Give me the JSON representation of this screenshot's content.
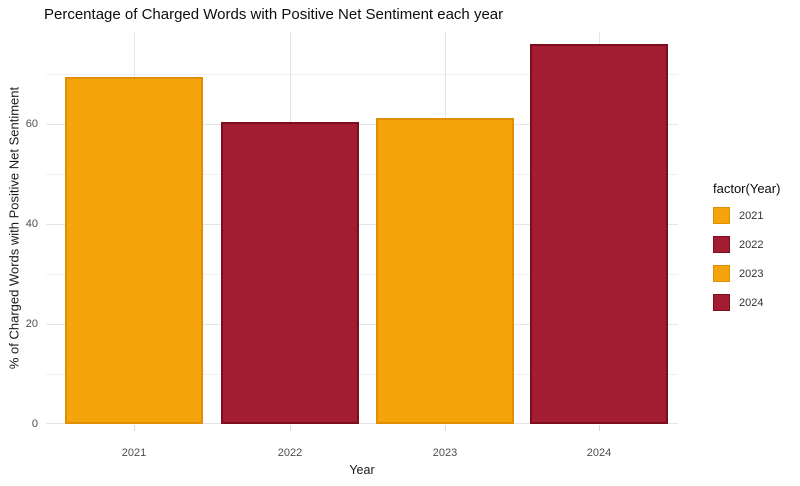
{
  "chart_data": {
    "type": "bar",
    "title": "Percentage of Charged Words with Positive Net Sentiment each year",
    "xlabel": "Year",
    "ylabel": "% of Charged Words with Positive Net Sentiment",
    "categories": [
      "2021",
      "2022",
      "2023",
      "2024"
    ],
    "values": [
      69.4,
      60.3,
      61.1,
      75.9
    ],
    "bar_color_keys": [
      "orange",
      "red",
      "orange",
      "red"
    ],
    "palette": {
      "orange": {
        "fill": "#F5A40C",
        "stroke": "#E08F03"
      },
      "red": {
        "fill": "#A21D32",
        "stroke": "#7C0E1F"
      }
    },
    "ylim": [
      0,
      78.4
    ],
    "yticks": [
      0,
      20,
      40,
      60
    ],
    "yticks_minor": [
      10,
      30,
      50,
      70
    ],
    "grid": true,
    "legend": {
      "title": "factor(Year)",
      "position": "right",
      "entries": [
        {
          "label": "2021",
          "color_key": "orange"
        },
        {
          "label": "2022",
          "color_key": "red"
        },
        {
          "label": "2023",
          "color_key": "orange"
        },
        {
          "label": "2024",
          "color_key": "red"
        }
      ]
    },
    "colors": {
      "background": "#FFFFFF",
      "grid_major": "#E4E4EC",
      "grid_minor": "#EFEFF5",
      "tick_label": "#4D4D4D",
      "axis_title": "#1A1A1A",
      "title": "#0D0D0D"
    }
  }
}
